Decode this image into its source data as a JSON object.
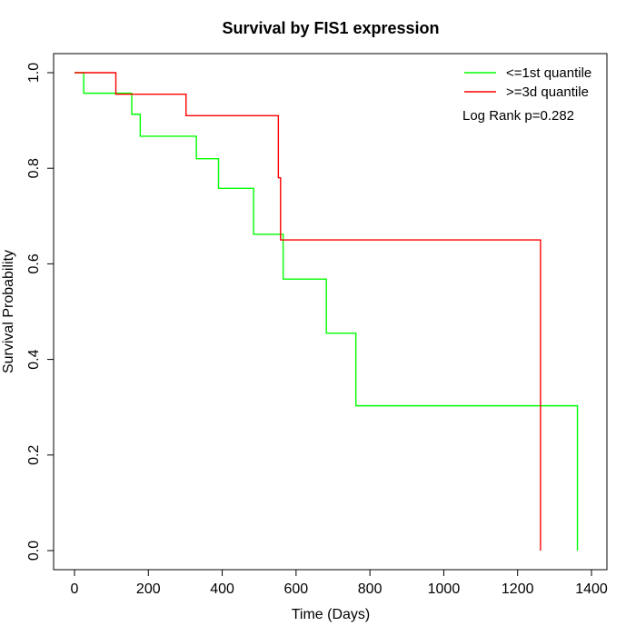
{
  "chart_data": {
    "type": "line",
    "title": "Survival by FIS1 expression",
    "xlabel": "Time (Days)",
    "ylabel": "Survival Probability",
    "xlim": [
      0,
      1400
    ],
    "ylim": [
      0,
      1
    ],
    "x_ticks": [
      0,
      200,
      400,
      600,
      800,
      1000,
      1200,
      1400
    ],
    "y_ticks": [
      0.0,
      0.2,
      0.4,
      0.6,
      0.8,
      1.0
    ],
    "x_tick_labels": [
      "0",
      "200",
      "400",
      "600",
      "800",
      "1000",
      "1200",
      "1400"
    ],
    "y_tick_labels": [
      "0.0",
      "0.2",
      "0.4",
      "0.6",
      "0.8",
      "1.0"
    ],
    "grid": false,
    "legend_position": "top-right",
    "annotation": "Log Rank p=0.282",
    "series": [
      {
        "name": "<=1st quantile",
        "color": "#00ff00",
        "step": true,
        "x": [
          0,
          25,
          155,
          178,
          330,
          390,
          485,
          565,
          682,
          762,
          1362
        ],
        "y": [
          1.0,
          0.957,
          0.913,
          0.867,
          0.82,
          0.758,
          0.662,
          0.568,
          0.455,
          0.303,
          0.0
        ]
      },
      {
        "name": ">=3d quantile",
        "color": "#ff0000",
        "step": true,
        "x": [
          0,
          112,
          302,
          552,
          558,
          1262
        ],
        "y": [
          1.0,
          0.955,
          0.91,
          0.78,
          0.65,
          0.0
        ]
      }
    ]
  }
}
